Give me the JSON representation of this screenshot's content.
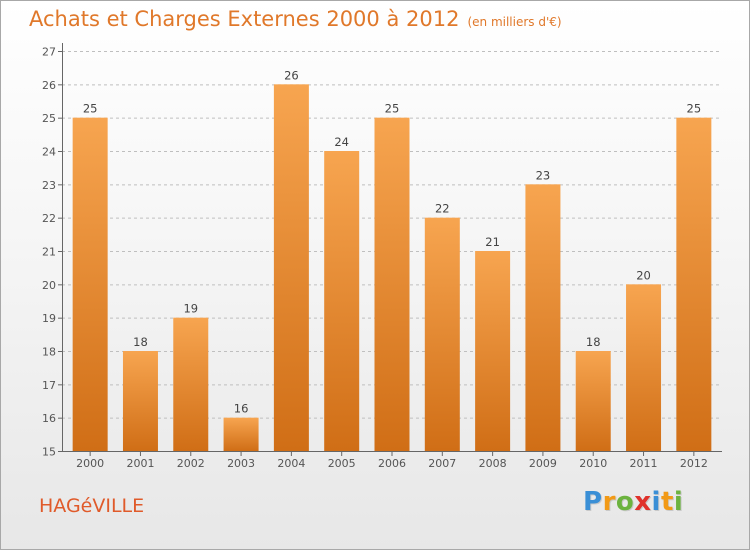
{
  "title": "Achats et Charges Externes 2000 à 2012",
  "subtitle": "(en milliers d'€)",
  "city": "HAGéVILLE",
  "logo": {
    "letters": [
      "P",
      "r",
      "o",
      "x",
      "i",
      "t",
      "i"
    ],
    "colors": [
      "#3a8fd6",
      "#f29a16",
      "#6cb33f",
      "#e0312a",
      "#3a8fd6",
      "#f29a16",
      "#6cb33f"
    ]
  },
  "colors": {
    "bar_light": "#f7a550",
    "bar_dark": "#d06e16",
    "title": "#e0782a",
    "grid": "#bfbfbf"
  },
  "chart_data": {
    "type": "bar",
    "categories": [
      "2000",
      "2001",
      "2002",
      "2003",
      "2004",
      "2005",
      "2006",
      "2007",
      "2008",
      "2009",
      "2010",
      "2011",
      "2012"
    ],
    "values": [
      25,
      18,
      19,
      16,
      26,
      24,
      25,
      22,
      21,
      23,
      18,
      20,
      25
    ],
    "ylim": [
      15,
      27
    ],
    "yticks": [
      15,
      16,
      17,
      18,
      19,
      20,
      21,
      22,
      23,
      24,
      25,
      26,
      27
    ],
    "grid": true
  }
}
